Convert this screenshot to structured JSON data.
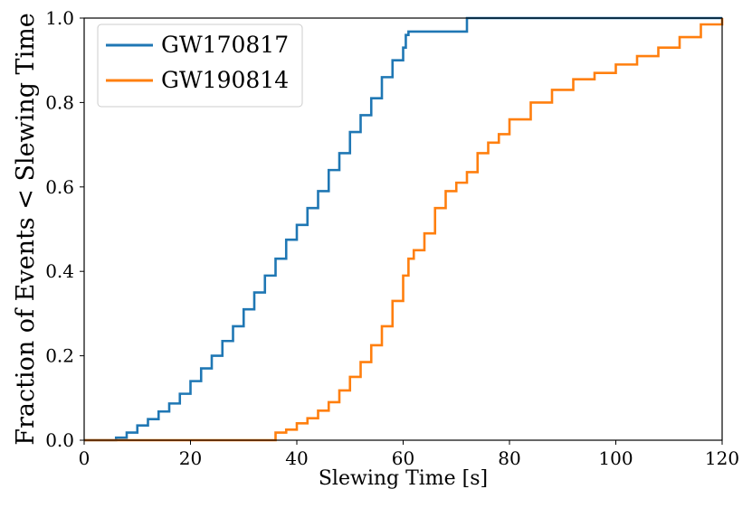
{
  "chart_data": {
    "type": "line",
    "title": "",
    "xlabel": "Slewing Time [s]",
    "ylabel": "Fraction of Events < Slewing Time",
    "xlim": [
      0,
      120
    ],
    "ylim": [
      0,
      1.0
    ],
    "xticks": [
      0,
      20,
      40,
      60,
      80,
      100,
      120
    ],
    "xtick_labels": [
      "0",
      "20",
      "40",
      "60",
      "80",
      "100",
      "120"
    ],
    "yticks": [
      0.0,
      0.2,
      0.4,
      0.6,
      0.8,
      1.0
    ],
    "ytick_labels": [
      "0.0",
      "0.2",
      "0.4",
      "0.6",
      "0.8",
      "1.0"
    ],
    "grid": false,
    "legend_position": "upper-left",
    "series": [
      {
        "name": "GW170817",
        "color": "#1f77b4",
        "x": [
          0,
          4.5,
          6,
          8,
          10,
          12,
          14,
          16,
          18,
          20,
          22,
          24,
          26,
          28,
          30,
          32,
          34,
          36,
          38,
          40,
          42,
          44,
          46,
          48,
          50,
          52,
          54,
          56,
          58,
          60,
          60.5,
          61,
          65,
          71.5,
          72,
          120
        ],
        "y": [
          0,
          0,
          0.006,
          0.018,
          0.035,
          0.05,
          0.068,
          0.087,
          0.11,
          0.14,
          0.17,
          0.2,
          0.235,
          0.27,
          0.31,
          0.35,
          0.39,
          0.43,
          0.475,
          0.51,
          0.55,
          0.59,
          0.64,
          0.68,
          0.73,
          0.77,
          0.81,
          0.86,
          0.9,
          0.93,
          0.96,
          0.968,
          0.968,
          0.968,
          1.0,
          1.0
        ]
      },
      {
        "name": "GW190814",
        "color": "#ff7f0e",
        "x": [
          0,
          35.5,
          36,
          38,
          40,
          42,
          44,
          46,
          48,
          50,
          52,
          54,
          56,
          58,
          60,
          61,
          62,
          64,
          66,
          68,
          70,
          72,
          74,
          76,
          78,
          80,
          84,
          88,
          92,
          96,
          100,
          104,
          108,
          112,
          116,
          120
        ],
        "y": [
          0,
          0,
          0.018,
          0.025,
          0.04,
          0.052,
          0.07,
          0.09,
          0.118,
          0.15,
          0.185,
          0.225,
          0.27,
          0.33,
          0.39,
          0.43,
          0.45,
          0.49,
          0.55,
          0.59,
          0.61,
          0.635,
          0.68,
          0.705,
          0.725,
          0.76,
          0.8,
          0.83,
          0.855,
          0.87,
          0.89,
          0.91,
          0.93,
          0.955,
          0.985,
          1.0
        ]
      }
    ]
  }
}
